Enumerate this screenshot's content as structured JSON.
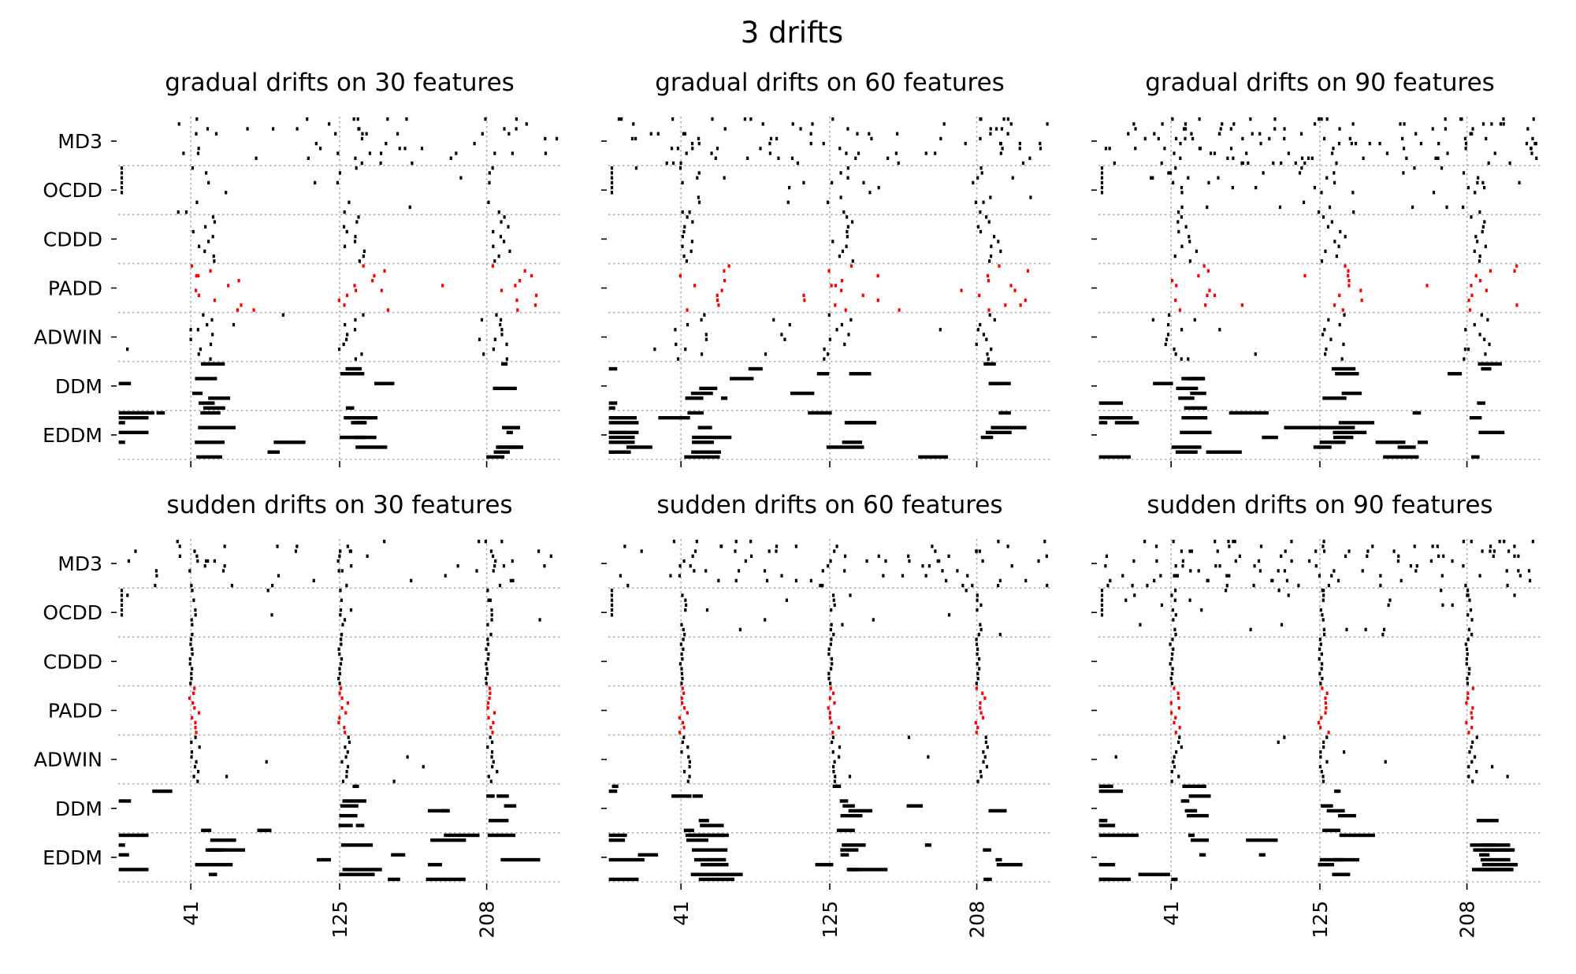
{
  "chart_data": {
    "type": "scatter",
    "suptitle": "3 drifts",
    "detectors": [
      "MD3",
      "OCDD",
      "CDDD",
      "PADD",
      "ADWIN",
      "DDM",
      "EDDM"
    ],
    "highlight_detector": "PADD",
    "highlight_color": "#ff0000",
    "marker_color": "#000000",
    "x_ticks": [
      "41",
      "125",
      "208"
    ],
    "xlim": [
      0,
      250
    ],
    "true_drift_positions": [
      41,
      125,
      208
    ],
    "repetitions_per_row": 10,
    "subplots": [
      {
        "title": "gradual drifts on 30 features",
        "drift_type": "gradual",
        "features": 30
      },
      {
        "title": "gradual drifts on 60 features",
        "drift_type": "gradual",
        "features": 60
      },
      {
        "title": "gradual drifts on 90 features",
        "drift_type": "gradual",
        "features": 90
      },
      {
        "title": "sudden drifts on 30 features",
        "drift_type": "sudden",
        "features": 30
      },
      {
        "title": "sudden drifts on 60 features",
        "drift_type": "sudden",
        "features": 60
      },
      {
        "title": "sudden drifts on 90 features",
        "drift_type": "sudden",
        "features": 90
      }
    ]
  }
}
